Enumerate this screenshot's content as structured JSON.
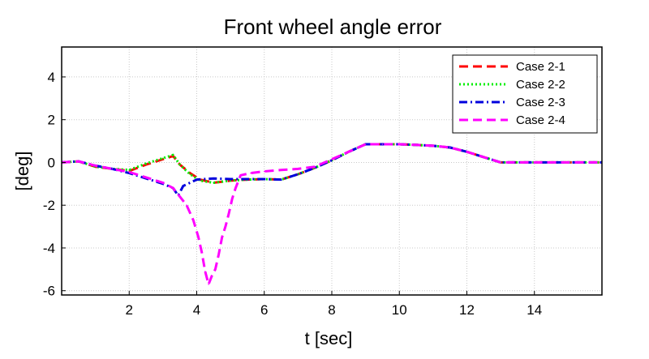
{
  "chart_data": {
    "type": "line",
    "title": "Front wheel angle error",
    "xlabel": "t [sec]",
    "ylabel": "[deg]",
    "xlim": [
      0,
      16
    ],
    "ylim": [
      -6.2,
      5.4
    ],
    "xticks": [
      2,
      4,
      6,
      8,
      10,
      12,
      14
    ],
    "yticks": [
      -6,
      -4,
      -2,
      0,
      2,
      4
    ],
    "grid": true,
    "legend_position": "top-right",
    "series": [
      {
        "name": "Case 2-1",
        "color": "#ff0000",
        "style": "dashed",
        "points": [
          [
            0,
            0
          ],
          [
            0.5,
            0.05
          ],
          [
            1.0,
            -0.2
          ],
          [
            1.5,
            -0.3
          ],
          [
            2.0,
            -0.4
          ],
          [
            2.5,
            -0.1
          ],
          [
            3.0,
            0.15
          ],
          [
            3.3,
            0.3
          ],
          [
            3.5,
            -0.1
          ],
          [
            3.8,
            -0.5
          ],
          [
            4.1,
            -0.8
          ],
          [
            4.5,
            -0.95
          ],
          [
            5.0,
            -0.85
          ],
          [
            5.5,
            -0.8
          ],
          [
            6.0,
            -0.78
          ],
          [
            6.5,
            -0.8
          ],
          [
            7.0,
            -0.55
          ],
          [
            7.5,
            -0.25
          ],
          [
            8.0,
            0.1
          ],
          [
            8.5,
            0.5
          ],
          [
            9.0,
            0.85
          ],
          [
            9.5,
            0.85
          ],
          [
            10.0,
            0.85
          ],
          [
            10.5,
            0.82
          ],
          [
            11.0,
            0.78
          ],
          [
            11.5,
            0.7
          ],
          [
            12.0,
            0.5
          ],
          [
            12.5,
            0.25
          ],
          [
            13.0,
            0.0
          ],
          [
            14.0,
            0.0
          ],
          [
            15.0,
            0.0
          ],
          [
            16.0,
            0.0
          ]
        ]
      },
      {
        "name": "Case 2-2",
        "color": "#00ee00",
        "style": "dotted",
        "points": [
          [
            0,
            0
          ],
          [
            0.5,
            0.05
          ],
          [
            1.0,
            -0.2
          ],
          [
            1.5,
            -0.3
          ],
          [
            2.0,
            -0.35
          ],
          [
            2.5,
            -0.05
          ],
          [
            3.0,
            0.2
          ],
          [
            3.3,
            0.35
          ],
          [
            3.5,
            -0.1
          ],
          [
            3.8,
            -0.55
          ],
          [
            4.1,
            -0.85
          ],
          [
            4.5,
            -0.95
          ],
          [
            5.0,
            -0.85
          ],
          [
            5.5,
            -0.8
          ],
          [
            6.0,
            -0.78
          ],
          [
            6.5,
            -0.8
          ],
          [
            7.0,
            -0.55
          ],
          [
            7.5,
            -0.25
          ],
          [
            8.0,
            0.1
          ],
          [
            8.5,
            0.5
          ],
          [
            9.0,
            0.85
          ],
          [
            9.5,
            0.85
          ],
          [
            10.0,
            0.85
          ],
          [
            10.5,
            0.82
          ],
          [
            11.0,
            0.78
          ],
          [
            11.5,
            0.7
          ],
          [
            12.0,
            0.5
          ],
          [
            12.5,
            0.25
          ],
          [
            13.0,
            0.0
          ],
          [
            14.0,
            0.0
          ],
          [
            15.0,
            0.0
          ],
          [
            16.0,
            0.0
          ]
        ]
      },
      {
        "name": "Case 2-3",
        "color": "#0000dd",
        "style": "dashdot",
        "points": [
          [
            0,
            0
          ],
          [
            0.5,
            0.05
          ],
          [
            1.0,
            -0.15
          ],
          [
            1.5,
            -0.3
          ],
          [
            2.0,
            -0.5
          ],
          [
            2.5,
            -0.75
          ],
          [
            3.0,
            -1.0
          ],
          [
            3.3,
            -1.2
          ],
          [
            3.45,
            -1.55
          ],
          [
            3.6,
            -1.1
          ],
          [
            4.0,
            -0.8
          ],
          [
            4.5,
            -0.75
          ],
          [
            5.0,
            -0.78
          ],
          [
            5.5,
            -0.78
          ],
          [
            6.0,
            -0.78
          ],
          [
            6.5,
            -0.8
          ],
          [
            7.0,
            -0.55
          ],
          [
            7.5,
            -0.25
          ],
          [
            8.0,
            0.1
          ],
          [
            8.5,
            0.5
          ],
          [
            9.0,
            0.85
          ],
          [
            9.5,
            0.85
          ],
          [
            10.0,
            0.85
          ],
          [
            10.5,
            0.82
          ],
          [
            11.0,
            0.78
          ],
          [
            11.5,
            0.7
          ],
          [
            12.0,
            0.5
          ],
          [
            12.5,
            0.25
          ],
          [
            13.0,
            0.0
          ],
          [
            14.0,
            0.0
          ],
          [
            15.0,
            0.0
          ],
          [
            16.0,
            0.0
          ]
        ]
      },
      {
        "name": "Case 2-4",
        "color": "#ff00ff",
        "style": "dashed",
        "points": [
          [
            0,
            0
          ],
          [
            0.5,
            0.05
          ],
          [
            1.0,
            -0.15
          ],
          [
            1.5,
            -0.3
          ],
          [
            2.0,
            -0.45
          ],
          [
            2.5,
            -0.7
          ],
          [
            3.0,
            -0.95
          ],
          [
            3.3,
            -1.2
          ],
          [
            3.45,
            -1.5
          ],
          [
            3.7,
            -2.0
          ],
          [
            3.9,
            -2.7
          ],
          [
            4.05,
            -3.5
          ],
          [
            4.15,
            -4.2
          ],
          [
            4.25,
            -5.1
          ],
          [
            4.35,
            -5.7
          ],
          [
            4.45,
            -5.3
          ],
          [
            4.55,
            -5.0
          ],
          [
            4.65,
            -4.3
          ],
          [
            4.75,
            -3.5
          ],
          [
            4.85,
            -3.0
          ],
          [
            4.95,
            -2.4
          ],
          [
            5.05,
            -1.7
          ],
          [
            5.15,
            -1.2
          ],
          [
            5.3,
            -0.6
          ],
          [
            5.6,
            -0.5
          ],
          [
            6.0,
            -0.42
          ],
          [
            6.5,
            -0.35
          ],
          [
            7.0,
            -0.3
          ],
          [
            7.5,
            -0.2
          ],
          [
            8.0,
            0.15
          ],
          [
            8.5,
            0.5
          ],
          [
            9.0,
            0.85
          ],
          [
            9.5,
            0.85
          ],
          [
            10.0,
            0.85
          ],
          [
            10.5,
            0.82
          ],
          [
            11.0,
            0.78
          ],
          [
            11.5,
            0.7
          ],
          [
            12.0,
            0.5
          ],
          [
            12.5,
            0.25
          ],
          [
            13.0,
            0.0
          ],
          [
            14.0,
            0.0
          ],
          [
            15.0,
            0.0
          ],
          [
            16.0,
            0.0
          ]
        ]
      }
    ]
  }
}
